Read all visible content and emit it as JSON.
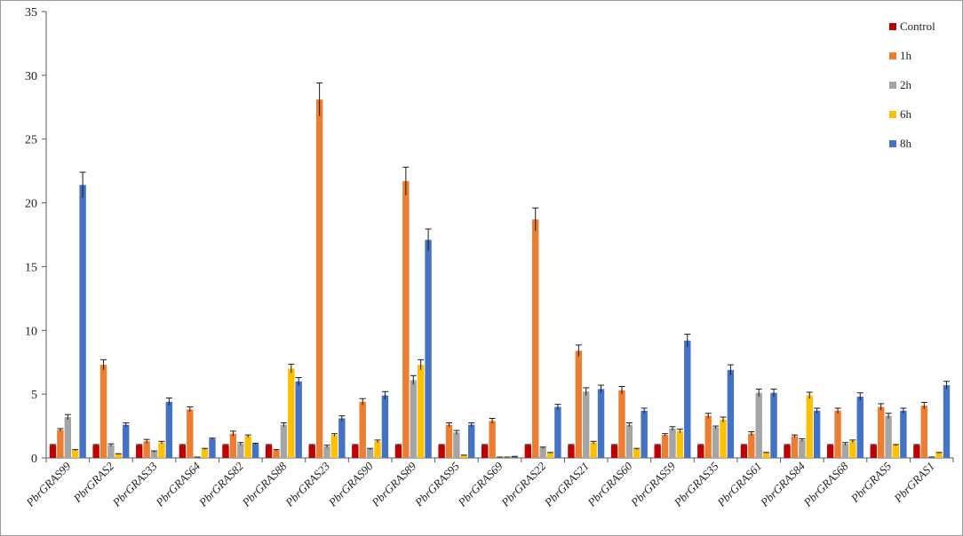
{
  "chart_data": {
    "type": "bar",
    "title": "",
    "xlabel": "",
    "ylabel": "",
    "ylim": [
      0,
      35
    ],
    "yticks": [
      0,
      5,
      10,
      15,
      20,
      25,
      30,
      35
    ],
    "grid": false,
    "legend_position": "top-right",
    "error_bars": true,
    "categories": [
      "PbrGRAS99",
      "PbrGRAS2",
      "PbrGRAS33",
      "PbrGRAS64",
      "PbrGRAS82",
      "PbrGRAS88",
      "PbrGRAS23",
      "PbrGRAS90",
      "PbrGRAS89",
      "PbrGRAS95",
      "PbrGRAS69",
      "PbrGRAS22",
      "PbrGRAS21",
      "PbrGRAS60",
      "PbrGRAS59",
      "PbrGRAS35",
      "PbrGRAS61",
      "PbrGRAS84",
      "PbrGRAS68",
      "PbrGRAS5",
      "PbrGRAS1"
    ],
    "series": [
      {
        "name": "Control",
        "color": "#c00000",
        "values": [
          1,
          1,
          1,
          1,
          1,
          1,
          1,
          1,
          1,
          1,
          1,
          1,
          1,
          1,
          1,
          1,
          1,
          1,
          1,
          1,
          1
        ],
        "errors": [
          0.05,
          0.05,
          0.05,
          0.05,
          0.05,
          0.05,
          0.05,
          0.05,
          0.05,
          0.05,
          0.05,
          0.05,
          0.05,
          0.05,
          0.05,
          0.05,
          0.05,
          0.05,
          0.05,
          0.05,
          0.05
        ]
      },
      {
        "name": "1h",
        "color": "#ed7d31",
        "values": [
          2.2,
          7.3,
          1.3,
          3.8,
          1.9,
          0.6,
          28.1,
          4.4,
          21.7,
          2.6,
          2.9,
          18.7,
          8.4,
          5.3,
          1.8,
          3.3,
          1.9,
          1.7,
          3.7,
          4,
          4.1
        ],
        "errors": [
          0.1,
          0.4,
          0.15,
          0.2,
          0.2,
          0.05,
          1.3,
          0.25,
          1.1,
          0.15,
          0.2,
          0.9,
          0.45,
          0.3,
          0.1,
          0.2,
          0.15,
          0.1,
          0.2,
          0.25,
          0.25
        ]
      },
      {
        "name": "2h",
        "color": "#a5a5a5",
        "values": [
          3.2,
          1,
          0.5,
          0.05,
          1.1,
          2.6,
          0.9,
          0.7,
          6.1,
          2,
          0.05,
          0.8,
          5.2,
          2.6,
          2.3,
          2.4,
          5.1,
          1.4,
          1.1,
          3.3,
          0.05
        ],
        "errors": [
          0.2,
          0.1,
          0.05,
          0.02,
          0.1,
          0.15,
          0.1,
          0.05,
          0.35,
          0.15,
          0.02,
          0.05,
          0.3,
          0.15,
          0.15,
          0.1,
          0.3,
          0.1,
          0.1,
          0.2,
          0.02
        ]
      },
      {
        "name": "6h",
        "color": "#ffc000",
        "values": [
          0.6,
          0.3,
          1.2,
          0.7,
          1.7,
          7,
          1.8,
          1.3,
          7.3,
          0.2,
          0.05,
          0.4,
          1.2,
          0.7,
          2.1,
          3,
          0.4,
          4.9,
          1.3,
          1,
          0.4
        ],
        "errors": [
          0.05,
          0.03,
          0.1,
          0.05,
          0.1,
          0.35,
          0.1,
          0.1,
          0.4,
          0.02,
          0.02,
          0.03,
          0.1,
          0.05,
          0.15,
          0.2,
          0.03,
          0.25,
          0.1,
          0.05,
          0.03
        ]
      },
      {
        "name": "8h",
        "color": "#4472c4",
        "values": [
          21.4,
          2.6,
          4.4,
          1.5,
          1.1,
          6,
          3.1,
          4.9,
          17.1,
          2.6,
          0.1,
          4,
          5.4,
          3.7,
          9.2,
          6.9,
          5.1,
          3.7,
          4.8,
          3.7,
          5.7
        ],
        "errors": [
          1,
          0.15,
          0.3,
          0.05,
          0.05,
          0.3,
          0.2,
          0.3,
          0.85,
          0.15,
          0.02,
          0.2,
          0.3,
          0.2,
          0.5,
          0.4,
          0.3,
          0.2,
          0.3,
          0.2,
          0.3
        ]
      }
    ]
  }
}
